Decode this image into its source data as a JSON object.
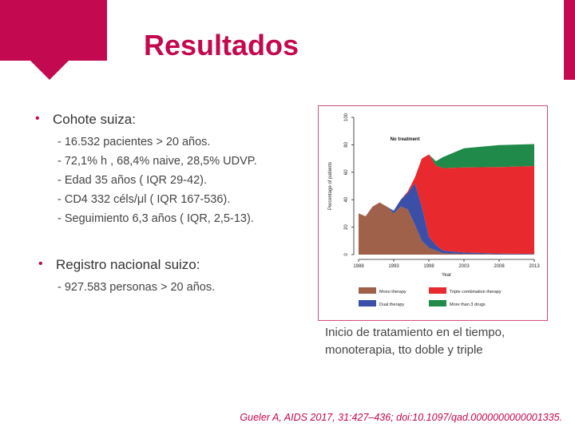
{
  "title": "Resultados",
  "bullets": [
    {
      "label": "Cohote suiza:",
      "items": [
        "- 16.532 pacientes > 20 años.",
        "-  72,1% h , 68,4% naive,  28,5% UDVP.",
        "- Edad 35 años ( IQR 29-42).",
        "- CD4 332 céls/μl ( IQR 167-536).",
        "- Seguimiento 6,3 años ( IQR, 2,5-13)."
      ]
    },
    {
      "label": "Registro nacional suizo:",
      "items": [
        "- 927.583 personas > 20 años."
      ]
    }
  ],
  "caption": "Inicio de tratamiento en el tiempo, monoterapia, tto doble y triple",
  "citation": "Gueler A, AIDS 2017, 31:427–436; doi:10.1097/qad.0000000000001335.",
  "chart_data": {
    "type": "area",
    "stacked": true,
    "ylabel": "Percentage of patients",
    "xlabel": "Year",
    "x": [
      1988,
      1989,
      1990,
      1991,
      1992,
      1993,
      1994,
      1995,
      1996,
      1997,
      1998,
      1999,
      2000,
      2003,
      2008,
      2013
    ],
    "ylim": [
      0,
      100
    ],
    "xlim": [
      1988,
      2013
    ],
    "y_ticks": [
      "0",
      "20",
      "40",
      "60",
      "80",
      "100"
    ],
    "x_ticks": [
      "1988",
      "1993",
      "1998",
      "2003",
      "2008",
      "2013"
    ],
    "annotation": "No treatment",
    "series": [
      {
        "name": "Mono therapy",
        "color": "#a0614a",
        "values": [
          30,
          28,
          35,
          38,
          35,
          30,
          35,
          33,
          22,
          10,
          5,
          3,
          1,
          0.5,
          0.3,
          0.2
        ]
      },
      {
        "name": "Dual therapy",
        "color": "#3b4fa8",
        "values": [
          0,
          0,
          0,
          0,
          0,
          2,
          5,
          12,
          30,
          25,
          8,
          4,
          2,
          1,
          0.5,
          0.3
        ]
      },
      {
        "name": "Triple combination therapy",
        "color": "#e8292e",
        "values": [
          0,
          0,
          0,
          0,
          0,
          0,
          0,
          1,
          4,
          35,
          60,
          58,
          60,
          62,
          63,
          64
        ]
      },
      {
        "name": "More than 3 drugs",
        "color": "#1f8a4a",
        "values": [
          0,
          0,
          0,
          0,
          0,
          0,
          0,
          0,
          0,
          0,
          0,
          3,
          8,
          14,
          16,
          16
        ]
      }
    ],
    "legend_position": "bottom"
  }
}
